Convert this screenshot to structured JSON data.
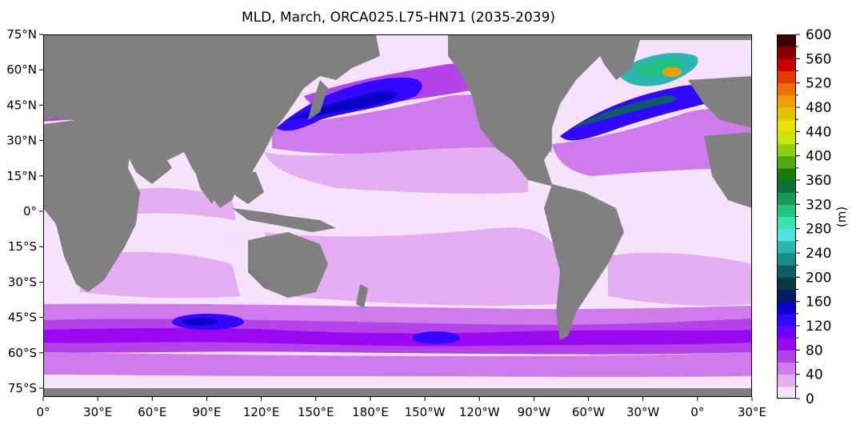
{
  "title": "MLD, March, ORCA025.L75-HN71 (2035-2039)",
  "colorbar": {
    "label": "(m)",
    "min": 0,
    "max": 600,
    "step": 20,
    "tick_labels": [
      "0",
      "40",
      "80",
      "120",
      "160",
      "200",
      "240",
      "280",
      "320",
      "360",
      "400",
      "440",
      "480",
      "520",
      "560",
      "600"
    ],
    "colors": [
      "#f7e2fb",
      "#e6aef2",
      "#cf7bec",
      "#b543ea",
      "#9a08f2",
      "#6a00ff",
      "#3207ff",
      "#0a00c8",
      "#061d66",
      "#06393d",
      "#0b5c68",
      "#1a8a8a",
      "#2bb5b5",
      "#4fe3e3",
      "#38e3b0",
      "#22c47f",
      "#169a5c",
      "#0e6f3d",
      "#1a7a0a",
      "#52a912",
      "#8fd010",
      "#c8e40e",
      "#e9e000",
      "#e6c000",
      "#eda000",
      "#ee7000",
      "#e43a00",
      "#cc0000",
      "#8a0000",
      "#3c0000"
    ]
  },
  "x_axis": {
    "labels": [
      "0°",
      "30°E",
      "60°E",
      "90°E",
      "120°E",
      "150°E",
      "180°E",
      "150°W",
      "120°W",
      "90°W",
      "60°W",
      "30°W",
      "0°",
      "30°E"
    ]
  },
  "y_axis": {
    "labels": [
      "75°N",
      "60°N",
      "45°N",
      "30°N",
      "15°N",
      "0°",
      "15°S",
      "30°S",
      "45°S",
      "60°S",
      "75°S"
    ]
  },
  "colors": {
    "land": "#808080",
    "ocean_min": "#f7e2fb"
  }
}
